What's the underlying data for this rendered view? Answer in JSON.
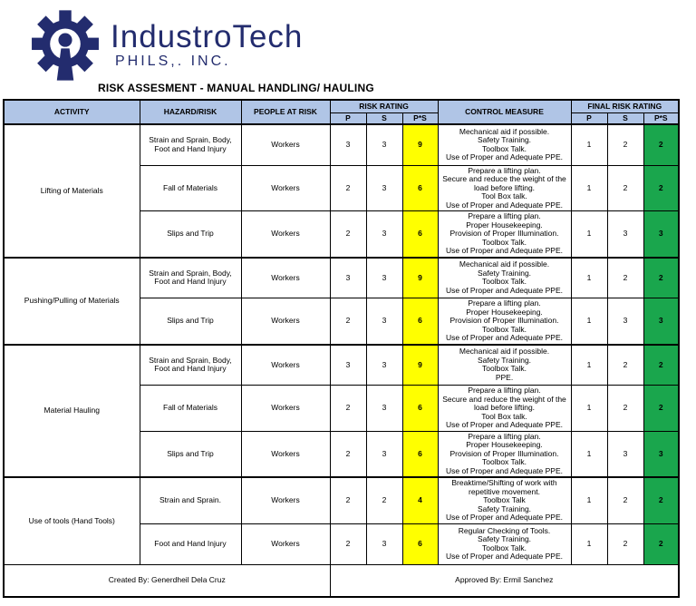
{
  "logo": {
    "company": "IndustroTech",
    "subtitle": "PHILS,. INC."
  },
  "title": "RISK ASSESMENT - MANUAL HANDLING/ HAULING",
  "colors": {
    "navy": "#232c6e",
    "header_blue": "#b0c5e6",
    "risk_yellow": "#ffff00",
    "risk_green": "#1aa64d"
  },
  "table": {
    "headers": {
      "activity": "ACTIVITY",
      "hazard": "HAZARD/RISK",
      "people": "PEOPLE AT RISK",
      "risk_rating": "RISK RATING",
      "control": "CONTROL MEASURE",
      "final_risk_rating": "FINAL RISK RATING",
      "p": "P",
      "s": "S",
      "ps": "P*S"
    },
    "groups": [
      {
        "activity": "Lifting of Materials",
        "rows": [
          {
            "hazard": "Strain and Sprain, Body, Foot and Hand Injury",
            "people": "Workers",
            "p": "3",
            "s": "3",
            "ps": "9",
            "control": "Mechanical aid if possible.\nSafety Training.\nToolbox Talk.\nUse of Proper and Adequate PPE.",
            "fp": "1",
            "fs": "2",
            "fps": "2"
          },
          {
            "hazard": "Fall of Materials",
            "people": "Workers",
            "p": "2",
            "s": "3",
            "ps": "6",
            "control": "Prepare a lifting plan.\nSecure and reduce the weight of the load before lifting.\nTool Box talk.\nUse of Proper and Adequate PPE.",
            "fp": "1",
            "fs": "2",
            "fps": "2"
          },
          {
            "hazard": "Slips and Trip",
            "people": "Workers",
            "p": "2",
            "s": "3",
            "ps": "6",
            "control": "Prepare a lifting plan.\nProper Housekeeping.\nProvision of Proper Illumination.\nToolbox Talk.\nUse of Proper and Adequate PPE.",
            "fp": "1",
            "fs": "3",
            "fps": "3"
          }
        ]
      },
      {
        "activity": "Pushing/Pulling of Materials",
        "rows": [
          {
            "hazard": "Strain and Sprain, Body, Foot and Hand Injury",
            "people": "Workers",
            "p": "3",
            "s": "3",
            "ps": "9",
            "control": "Mechanical aid if possible.\nSafety Training.\nToolbox Talk.\nUse of Proper and Adequate PPE.",
            "fp": "1",
            "fs": "2",
            "fps": "2"
          },
          {
            "hazard": "Slips and Trip",
            "people": "Workers",
            "p": "2",
            "s": "3",
            "ps": "6",
            "control": "Prepare a lifting plan.\nProper Housekeeping.\nProvision of Proper Illumination.\nToolbox Talk.\nUse of Proper and Adequate PPE.",
            "fp": "1",
            "fs": "3",
            "fps": "3"
          }
        ]
      },
      {
        "activity": "Material Hauling",
        "rows": [
          {
            "hazard": "Strain and Sprain, Body, Foot and Hand Injury",
            "people": "Workers",
            "p": "3",
            "s": "3",
            "ps": "9",
            "control": "Mechanical aid if possible.\nSafety Training.\nToolbox Talk.\nPPE.",
            "fp": "1",
            "fs": "2",
            "fps": "2"
          },
          {
            "hazard": "Fall of Materials",
            "people": "Workers",
            "p": "2",
            "s": "3",
            "ps": "6",
            "control": "Prepare a lifting plan.\nSecure and reduce the weight of the load before lifting.\nTool Box talk.\nUse of Proper and Adequate PPE.",
            "fp": "1",
            "fs": "2",
            "fps": "2"
          },
          {
            "hazard": "Slips and Trip",
            "people": "Workers",
            "p": "2",
            "s": "3",
            "ps": "6",
            "control": "Prepare a lifting plan.\nProper Housekeeping.\nProvision of Proper Illumination.\nToolbox Talk.\nUse of Proper and Adequate PPE.",
            "fp": "1",
            "fs": "3",
            "fps": "3"
          }
        ]
      },
      {
        "activity": "Use of tools (Hand Tools)",
        "rows": [
          {
            "hazard": "Strain and Sprain.",
            "people": "Workers",
            "p": "2",
            "s": "2",
            "ps": "4",
            "control": "Breaktime/Shifting of work with repetitive movement.\nToolbox Talk\nSafety Training.\nUse of Proper and Adequate PPE.",
            "fp": "1",
            "fs": "2",
            "fps": "2"
          },
          {
            "hazard": "Foot and Hand Injury",
            "people": "Workers",
            "p": "2",
            "s": "3",
            "ps": "6",
            "control": "Regular Checking of Tools.\nSafety Training.\nToolbox Talk.\nUse of Proper and Adequate PPE.",
            "fp": "1",
            "fs": "2",
            "fps": "2"
          }
        ]
      }
    ]
  },
  "footer": {
    "created_by": "Created By: Generdheil Dela Cruz",
    "approved_by": "Approved By: Ermil Sanchez"
  }
}
